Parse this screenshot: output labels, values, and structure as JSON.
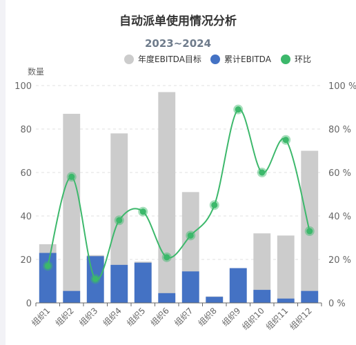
{
  "chart_data": {
    "type": "bar",
    "title": "自动派单使用情况分析",
    "subtitle": "2023~2024",
    "ylabel": "数量",
    "categories": [
      "组织1",
      "组织2",
      "组织3",
      "组织4",
      "组织5",
      "组织6",
      "组织7",
      "组织8",
      "组织9",
      "组织10",
      "组织11",
      "组织12"
    ],
    "series": [
      {
        "name": "年度EBITDA目标",
        "type": "bar",
        "color": "#cccccc",
        "values": [
          27,
          87,
          22,
          78,
          19,
          97,
          51,
          3,
          16,
          32,
          31,
          70
        ]
      },
      {
        "name": "累计EBITDA",
        "type": "bar",
        "color": "#4472c4",
        "values": [
          23,
          5.5,
          21.5,
          17.5,
          18.5,
          4.5,
          14.5,
          2.8,
          16,
          6,
          2,
          5.5
        ]
      },
      {
        "name": "环比",
        "type": "line",
        "color": "#3cb86b",
        "axis": "right",
        "smooth": true,
        "values": [
          17,
          58,
          11,
          38,
          42,
          21,
          31,
          45,
          89,
          60,
          75,
          33
        ]
      }
    ],
    "ylim": [
      0,
      100
    ],
    "y_ticks": [
      "0",
      "20",
      "40",
      "60",
      "80",
      "100"
    ],
    "y2lim": [
      0,
      100
    ],
    "y2_ticks": [
      "0 %",
      "20 %",
      "40 %",
      "60 %",
      "80 %",
      "100 %"
    ],
    "grid": true,
    "legend": "top-right"
  }
}
